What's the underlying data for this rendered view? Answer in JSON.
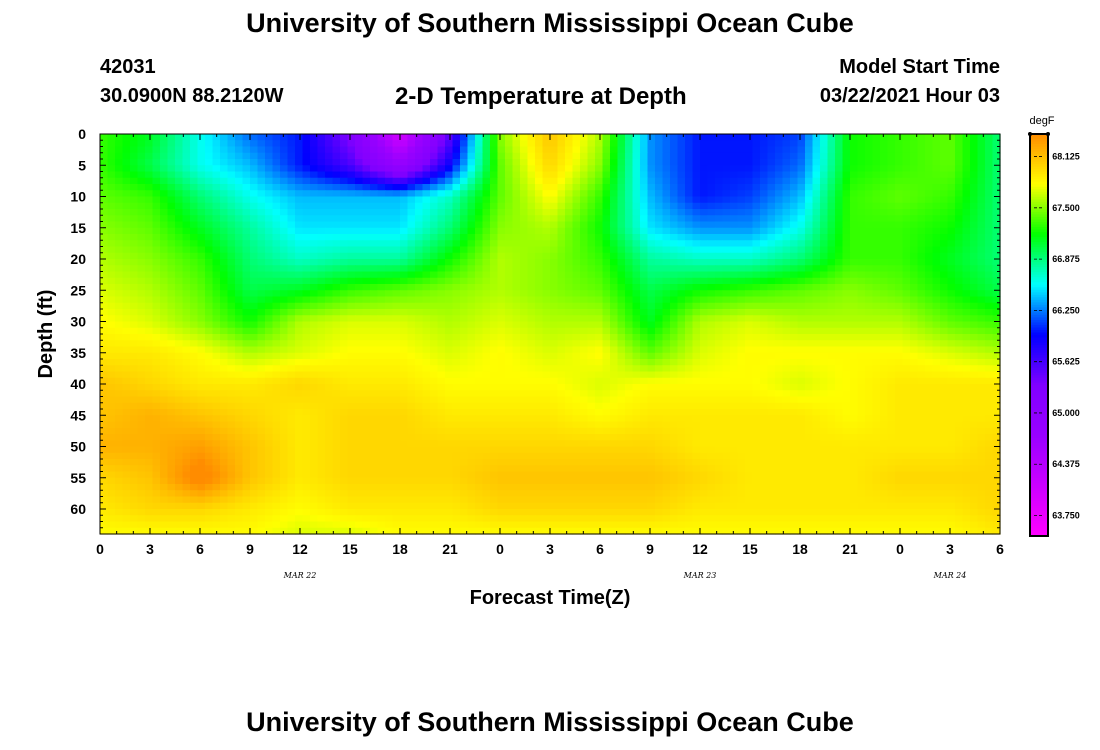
{
  "header": {
    "title": "University of Southern Mississippi Ocean Cube",
    "station_id": "42031",
    "station_coords": "30.0900N 88.2120W",
    "plot_title": "2-D Temperature at Depth",
    "model_start_label": "Model Start Time",
    "model_start_value": "03/22/2021 Hour 03"
  },
  "footer": {
    "title": "University of Southern Mississippi Ocean Cube"
  },
  "chart_data": {
    "type": "heatmap",
    "title": "2-D Temperature at Depth",
    "xlabel": "Forecast Time(Z)",
    "ylabel": "Depth (ft)",
    "x_tick_labels": [
      "0",
      "3",
      "6",
      "9",
      "12",
      "15",
      "18",
      "21",
      "0",
      "3",
      "6",
      "9",
      "12",
      "15",
      "18",
      "21",
      "0",
      "3",
      "6"
    ],
    "x_range_hours": [
      0,
      54
    ],
    "date_labels": [
      {
        "text": "MAR 22",
        "hour": 12
      },
      {
        "text": "MAR 23",
        "hour": 36
      },
      {
        "text": "MAR 24",
        "hour": 51
      }
    ],
    "y_tick_labels": [
      "0",
      "5",
      "10",
      "15",
      "20",
      "25",
      "30",
      "35",
      "40",
      "45",
      "50",
      "55",
      "60"
    ],
    "y_range_ft": [
      0,
      64
    ],
    "y_inverted": true,
    "colorbar": {
      "unit": "degF",
      "tick_values": [
        63.75,
        64.375,
        65.0,
        65.625,
        66.25,
        66.875,
        67.5,
        68.125
      ],
      "tick_labels": [
        "63.750",
        "64.375",
        "65.000",
        "65.625",
        "66.250",
        "66.875",
        "67.500",
        "68.125"
      ],
      "range": [
        63.5,
        68.4
      ],
      "colors": [
        "#ff00ff",
        "#cc00ff",
        "#9900ff",
        "#8000ff",
        "#0000ff",
        "#00ffff",
        "#00ff00",
        "#ffff00",
        "#ff8c00"
      ]
    },
    "grid_hours": [
      0,
      3,
      6,
      9,
      12,
      15,
      18,
      21,
      24,
      27,
      30,
      33,
      36,
      39,
      42,
      45,
      48,
      51,
      54
    ],
    "grid_depths": [
      0,
      5,
      10,
      15,
      20,
      25,
      30,
      35,
      40,
      45,
      50,
      55,
      60,
      64
    ],
    "values": [
      [
        67.3,
        67.1,
        66.6,
        66.2,
        66.0,
        65.3,
        64.0,
        65.5,
        67.5,
        68.1,
        67.6,
        66.3,
        66.0,
        66.0,
        66.1,
        67.2,
        67.3,
        67.4,
        66.9
      ],
      [
        67.3,
        67.0,
        66.6,
        66.4,
        66.0,
        65.6,
        64.8,
        65.9,
        67.4,
        68.0,
        67.5,
        66.3,
        66.0,
        66.0,
        66.2,
        67.2,
        67.3,
        67.4,
        66.9
      ],
      [
        67.4,
        67.3,
        66.9,
        66.6,
        66.4,
        66.4,
        66.4,
        66.7,
        67.4,
        67.8,
        67.3,
        66.4,
        66.0,
        66.1,
        66.4,
        67.3,
        67.4,
        67.3,
        66.9
      ],
      [
        67.5,
        67.4,
        67.1,
        66.8,
        66.5,
        66.5,
        66.5,
        66.9,
        67.5,
        67.6,
        67.2,
        66.5,
        66.3,
        66.3,
        66.6,
        67.3,
        67.3,
        67.2,
        66.9
      ],
      [
        67.6,
        67.5,
        67.3,
        66.9,
        66.7,
        66.8,
        66.8,
        67.2,
        67.6,
        67.5,
        67.3,
        66.8,
        66.7,
        66.7,
        66.9,
        67.3,
        67.3,
        67.1,
        66.9
      ],
      [
        67.7,
        67.6,
        67.4,
        67.0,
        67.1,
        67.3,
        67.4,
        67.5,
        67.6,
        67.5,
        67.4,
        67.0,
        67.2,
        67.3,
        67.4,
        67.5,
        67.4,
        67.2,
        67.0
      ],
      [
        67.8,
        67.7,
        67.5,
        67.2,
        67.6,
        67.7,
        67.7,
        67.6,
        67.7,
        67.6,
        67.6,
        67.1,
        67.6,
        67.7,
        67.6,
        67.6,
        67.6,
        67.4,
        67.3
      ],
      [
        67.9,
        67.9,
        67.8,
        67.6,
        67.7,
        67.8,
        67.8,
        67.7,
        67.8,
        67.7,
        67.8,
        67.4,
        67.7,
        67.8,
        67.8,
        67.8,
        67.8,
        67.7,
        67.6
      ],
      [
        68.1,
        68.0,
        67.9,
        67.9,
        68.0,
        67.9,
        67.9,
        67.8,
        67.8,
        67.8,
        67.7,
        67.8,
        67.8,
        67.8,
        67.7,
        67.8,
        67.9,
        67.9,
        67.9
      ],
      [
        68.1,
        68.2,
        68.1,
        68.0,
        67.9,
        68.0,
        68.0,
        67.9,
        67.9,
        67.9,
        67.8,
        67.9,
        67.9,
        67.9,
        67.9,
        67.8,
        67.9,
        67.9,
        67.9
      ],
      [
        68.2,
        68.2,
        68.3,
        68.1,
        67.9,
        68.0,
        68.0,
        68.0,
        68.0,
        68.0,
        68.0,
        68.0,
        67.9,
        67.9,
        67.9,
        67.9,
        67.9,
        67.9,
        68.0
      ],
      [
        68.0,
        68.1,
        68.5,
        68.1,
        67.9,
        68.0,
        68.0,
        68.0,
        68.1,
        68.1,
        68.1,
        68.1,
        68.0,
        67.9,
        67.9,
        67.9,
        68.0,
        68.0,
        68.0
      ],
      [
        67.9,
        68.0,
        68.0,
        67.9,
        67.8,
        67.9,
        67.9,
        67.9,
        68.0,
        68.0,
        68.0,
        68.0,
        67.9,
        67.9,
        67.9,
        67.9,
        67.9,
        67.9,
        68.0
      ],
      [
        67.8,
        67.8,
        67.8,
        67.8,
        67.7,
        67.7,
        67.8,
        67.8,
        67.8,
        67.8,
        67.8,
        67.8,
        67.8,
        67.8,
        67.8,
        67.8,
        67.8,
        67.8,
        67.9
      ]
    ]
  }
}
